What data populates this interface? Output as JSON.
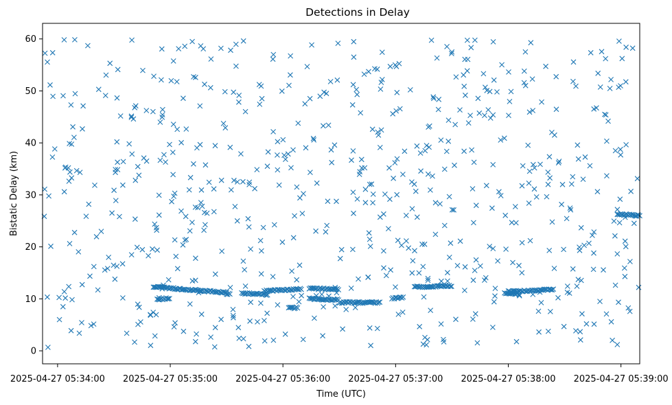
{
  "chart_data": {
    "type": "scatter",
    "title": "Detections in Delay",
    "xlabel": "Time (UTC)",
    "ylabel": "Bistatic Delay (km)",
    "marker": "x",
    "color": "#1f77b4",
    "grid": false,
    "x_start": "2025-04-27 05:33:52",
    "x_end": "2025-04-27 05:39:10",
    "xlim": [
      "2025-04-27 05:33:52",
      "2025-04-27 05:39:10"
    ],
    "ylim": [
      -2.5,
      63
    ],
    "xticks": [
      "2025-04-27 05:34:00",
      "2025-04-27 05:35:00",
      "2025-04-27 05:36:00",
      "2025-04-27 05:37:00",
      "2025-04-27 05:38:00",
      "2025-04-27 05:39:00"
    ],
    "yticks": [
      0,
      10,
      20,
      30,
      40,
      50,
      60
    ],
    "tracks": [
      {
        "start": "2025-04-27 05:34:51",
        "end": "2025-04-27 05:35:30",
        "y_start": 12.3,
        "y_end": 11.2
      },
      {
        "start": "2025-04-27 05:34:53",
        "end": "2025-04-27 05:35:00",
        "y_start": 9.9,
        "y_end": 10.1
      },
      {
        "start": "2025-04-27 05:35:30",
        "end": "2025-04-27 05:35:32",
        "y_start": 11.0,
        "y_end": 10.9
      },
      {
        "start": "2025-04-27 05:35:38",
        "end": "2025-04-27 05:35:52",
        "y_start": 11.1,
        "y_end": 10.8
      },
      {
        "start": "2025-04-27 05:35:50",
        "end": "2025-04-27 05:36:10",
        "y_start": 11.5,
        "y_end": 11.9
      },
      {
        "start": "2025-04-27 05:36:03",
        "end": "2025-04-27 05:36:08",
        "y_start": 8.2,
        "y_end": 8.3
      },
      {
        "start": "2025-04-27 05:36:14",
        "end": "2025-04-27 05:36:30",
        "y_start": 10.0,
        "y_end": 9.8
      },
      {
        "start": "2025-04-27 05:36:14",
        "end": "2025-04-27 05:36:30",
        "y_start": 12.0,
        "y_end": 11.8
      },
      {
        "start": "2025-04-27 05:36:30",
        "end": "2025-04-27 05:36:52",
        "y_start": 9.3,
        "y_end": 9.3
      },
      {
        "start": "2025-04-27 05:36:58",
        "end": "2025-04-27 05:37:04",
        "y_start": 10.1,
        "y_end": 10.2
      },
      {
        "start": "2025-04-27 05:37:10",
        "end": "2025-04-27 05:37:30",
        "y_start": 12.3,
        "y_end": 12.5
      },
      {
        "start": "2025-04-27 05:37:58",
        "end": "2025-04-27 05:38:05",
        "y_start": 11.0,
        "y_end": 11.0
      },
      {
        "start": "2025-04-27 05:38:00",
        "end": "2025-04-27 05:38:24",
        "y_start": 11.4,
        "y_end": 11.8
      },
      {
        "start": "2025-04-27 05:38:58",
        "end": "2025-04-27 05:39:10",
        "y_start": 26.3,
        "y_end": 26.0
      }
    ],
    "clutter_points": 700,
    "clutter_ylim": [
      0.5,
      60
    ]
  }
}
